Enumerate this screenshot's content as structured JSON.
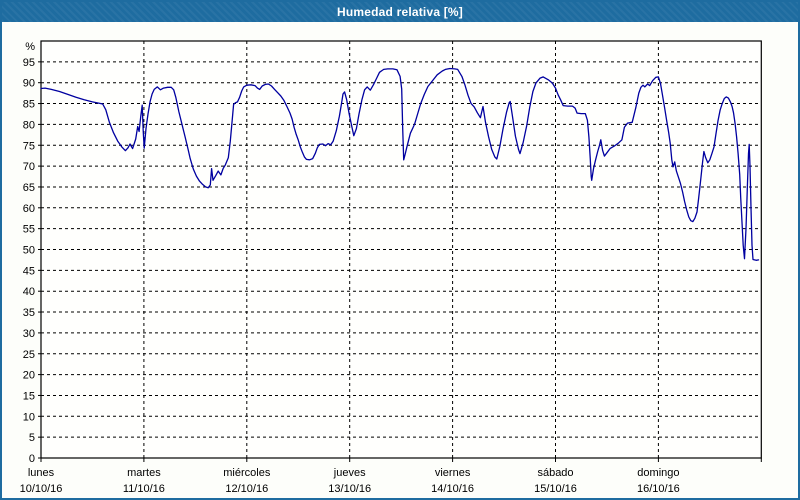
{
  "window": {
    "title": "Humedad relativa [%]"
  },
  "style": {
    "titlebar_bg": "#1e6ca0",
    "window_border": "#1e6ca0",
    "window_bg": "#fdfefa",
    "plot_bg": "#fffffd",
    "line_color": "#0000a0",
    "grid_color": "#000000",
    "frame_color": "#000000",
    "text_color": "#000000",
    "title_text_color": "#ffffff"
  },
  "chart_data": {
    "type": "line",
    "title": "Humedad relativa [%]",
    "ylabel": "%",
    "y_unit_label": "%",
    "ylim": [
      0,
      100
    ],
    "y_ticks": [
      0,
      5,
      10,
      15,
      20,
      25,
      30,
      35,
      40,
      45,
      50,
      55,
      60,
      65,
      70,
      75,
      80,
      85,
      90,
      95
    ],
    "grid": true,
    "x_unit": "days",
    "days": [
      {
        "name": "lunes",
        "date": "10/10/16"
      },
      {
        "name": "martes",
        "date": "11/10/16"
      },
      {
        "name": "miércoles",
        "date": "12/10/16"
      },
      {
        "name": "jueves",
        "date": "13/10/16"
      },
      {
        "name": "viernes",
        "date": "14/10/16"
      },
      {
        "name": "sábado",
        "date": "15/10/16"
      },
      {
        "name": "domingo",
        "date": "16/10/16"
      }
    ],
    "series": [
      {
        "name": "Humedad relativa",
        "color": "#0000a0",
        "points": [
          [
            0.0,
            88.6
          ],
          [
            0.04,
            88.7
          ],
          [
            0.1,
            88.4
          ],
          [
            0.18,
            87.9
          ],
          [
            0.26,
            87.2
          ],
          [
            0.34,
            86.5
          ],
          [
            0.42,
            85.9
          ],
          [
            0.5,
            85.4
          ],
          [
            0.56,
            85.1
          ],
          [
            0.6,
            84.9
          ],
          [
            0.63,
            83.5
          ],
          [
            0.665,
            80.5
          ],
          [
            0.705,
            78.0
          ],
          [
            0.745,
            76.0
          ],
          [
            0.785,
            74.6
          ],
          [
            0.82,
            73.7
          ],
          [
            0.845,
            74.4
          ],
          [
            0.865,
            75.3
          ],
          [
            0.89,
            74.2
          ],
          [
            0.92,
            76.5
          ],
          [
            0.94,
            79.5
          ],
          [
            0.953,
            78.3
          ],
          [
            0.97,
            82.0
          ],
          [
            0.983,
            84.6
          ],
          [
            0.993,
            78.5
          ],
          [
            1.003,
            74.3
          ],
          [
            1.02,
            79.0
          ],
          [
            1.04,
            82.5
          ],
          [
            1.06,
            85.5
          ],
          [
            1.08,
            87.3
          ],
          [
            1.1,
            88.4
          ],
          [
            1.13,
            89.0
          ],
          [
            1.16,
            88.3
          ],
          [
            1.19,
            88.7
          ],
          [
            1.23,
            88.9
          ],
          [
            1.265,
            88.9
          ],
          [
            1.29,
            88.3
          ],
          [
            1.31,
            86.5
          ],
          [
            1.34,
            83.0
          ],
          [
            1.37,
            80.0
          ],
          [
            1.4,
            77.0
          ],
          [
            1.43,
            74.0
          ],
          [
            1.45,
            71.8
          ],
          [
            1.48,
            69.3
          ],
          [
            1.51,
            67.6
          ],
          [
            1.54,
            66.4
          ],
          [
            1.57,
            65.6
          ],
          [
            1.6,
            65.0
          ],
          [
            1.625,
            64.8
          ],
          [
            1.645,
            65.5
          ],
          [
            1.658,
            69.4
          ],
          [
            1.672,
            66.6
          ],
          [
            1.7,
            67.8
          ],
          [
            1.722,
            68.8
          ],
          [
            1.748,
            67.9
          ],
          [
            1.77,
            69.4
          ],
          [
            1.792,
            70.3
          ],
          [
            1.82,
            72.0
          ],
          [
            1.84,
            76.0
          ],
          [
            1.858,
            81.0
          ],
          [
            1.872,
            84.8
          ],
          [
            1.89,
            85.2
          ],
          [
            1.91,
            85.4
          ],
          [
            1.93,
            86.5
          ],
          [
            1.95,
            88.0
          ],
          [
            1.97,
            89.0
          ],
          [
            2.0,
            89.4
          ],
          [
            2.04,
            89.5
          ],
          [
            2.08,
            89.3
          ],
          [
            2.103,
            88.7
          ],
          [
            2.125,
            88.4
          ],
          [
            2.15,
            89.2
          ],
          [
            2.18,
            89.6
          ],
          [
            2.21,
            89.7
          ],
          [
            2.24,
            89.2
          ],
          [
            2.27,
            88.4
          ],
          [
            2.3,
            87.6
          ],
          [
            2.33,
            86.8
          ],
          [
            2.36,
            85.8
          ],
          [
            2.39,
            84.3
          ],
          [
            2.42,
            82.7
          ],
          [
            2.44,
            81.3
          ],
          [
            2.46,
            79.3
          ],
          [
            2.48,
            77.6
          ],
          [
            2.5,
            76.2
          ],
          [
            2.52,
            74.6
          ],
          [
            2.54,
            73.3
          ],
          [
            2.56,
            72.2
          ],
          [
            2.58,
            71.6
          ],
          [
            2.61,
            71.5
          ],
          [
            2.64,
            71.8
          ],
          [
            2.665,
            73.0
          ],
          [
            2.685,
            74.4
          ],
          [
            2.705,
            75.2
          ],
          [
            2.74,
            75.3
          ],
          [
            2.765,
            74.9
          ],
          [
            2.79,
            75.4
          ],
          [
            2.815,
            75.1
          ],
          [
            2.84,
            76.0
          ],
          [
            2.87,
            78.5
          ],
          [
            2.9,
            82.0
          ],
          [
            2.92,
            85.0
          ],
          [
            2.935,
            87.3
          ],
          [
            2.95,
            87.8
          ],
          [
            2.97,
            86.0
          ],
          [
            2.995,
            82.5
          ],
          [
            3.02,
            79.5
          ],
          [
            3.04,
            77.3
          ],
          [
            3.065,
            79.0
          ],
          [
            3.09,
            82.5
          ],
          [
            3.12,
            86.0
          ],
          [
            3.145,
            88.3
          ],
          [
            3.17,
            89.0
          ],
          [
            3.2,
            88.2
          ],
          [
            3.23,
            89.5
          ],
          [
            3.26,
            91.0
          ],
          [
            3.29,
            92.5
          ],
          [
            3.33,
            93.2
          ],
          [
            3.37,
            93.3
          ],
          [
            3.42,
            93.3
          ],
          [
            3.46,
            93.1
          ],
          [
            3.49,
            91.5
          ],
          [
            3.505,
            88.5
          ],
          [
            3.515,
            79.0
          ],
          [
            3.525,
            71.5
          ],
          [
            3.54,
            73.0
          ],
          [
            3.555,
            74.5
          ],
          [
            3.59,
            77.9
          ],
          [
            3.63,
            80.0
          ],
          [
            3.66,
            82.5
          ],
          [
            3.69,
            85.0
          ],
          [
            3.725,
            87.2
          ],
          [
            3.76,
            89.1
          ],
          [
            3.8,
            90.3
          ],
          [
            3.85,
            91.9
          ],
          [
            3.9,
            92.8
          ],
          [
            3.93,
            93.2
          ],
          [
            3.975,
            93.4
          ],
          [
            4.02,
            93.3
          ],
          [
            4.05,
            93.2
          ],
          [
            4.09,
            91.5
          ],
          [
            4.12,
            89.5
          ],
          [
            4.15,
            87.0
          ],
          [
            4.18,
            85.0
          ],
          [
            4.21,
            84.2
          ],
          [
            4.24,
            82.8
          ],
          [
            4.27,
            81.6
          ],
          [
            4.295,
            84.3
          ],
          [
            4.32,
            80.5
          ],
          [
            4.35,
            77.0
          ],
          [
            4.38,
            74.0
          ],
          [
            4.41,
            72.2
          ],
          [
            4.43,
            71.7
          ],
          [
            4.46,
            74.8
          ],
          [
            4.49,
            78.9
          ],
          [
            4.525,
            83.0
          ],
          [
            4.55,
            85.2
          ],
          [
            4.56,
            85.5
          ],
          [
            4.58,
            82.2
          ],
          [
            4.61,
            77.2
          ],
          [
            4.64,
            74.0
          ],
          [
            4.655,
            73.0
          ],
          [
            4.685,
            75.6
          ],
          [
            4.72,
            79.7
          ],
          [
            4.75,
            84.2
          ],
          [
            4.78,
            87.9
          ],
          [
            4.81,
            89.9
          ],
          [
            4.85,
            91.1
          ],
          [
            4.88,
            91.4
          ],
          [
            4.93,
            90.7
          ],
          [
            4.97,
            89.9
          ],
          [
            5.0,
            88.7
          ],
          [
            5.025,
            87.1
          ],
          [
            5.05,
            85.9
          ],
          [
            5.075,
            84.5
          ],
          [
            5.12,
            84.4
          ],
          [
            5.165,
            84.4
          ],
          [
            5.19,
            83.9
          ],
          [
            5.21,
            82.7
          ],
          [
            5.25,
            82.6
          ],
          [
            5.29,
            82.6
          ],
          [
            5.31,
            81.0
          ],
          [
            5.325,
            77.0
          ],
          [
            5.337,
            72.0
          ],
          [
            5.347,
            67.5
          ],
          [
            5.352,
            66.6
          ],
          [
            5.37,
            69.5
          ],
          [
            5.39,
            71.5
          ],
          [
            5.41,
            73.5
          ],
          [
            5.428,
            75.0
          ],
          [
            5.44,
            76.3
          ],
          [
            5.458,
            73.8
          ],
          [
            5.475,
            72.4
          ],
          [
            5.5,
            73.2
          ],
          [
            5.53,
            74.2
          ],
          [
            5.57,
            74.8
          ],
          [
            5.61,
            75.5
          ],
          [
            5.645,
            76.3
          ],
          [
            5.67,
            79.3
          ],
          [
            5.7,
            80.3
          ],
          [
            5.745,
            80.5
          ],
          [
            5.78,
            84.0
          ],
          [
            5.81,
            87.5
          ],
          [
            5.83,
            88.9
          ],
          [
            5.85,
            89.4
          ],
          [
            5.868,
            89.0
          ],
          [
            5.895,
            89.7
          ],
          [
            5.915,
            89.3
          ],
          [
            5.945,
            90.5
          ],
          [
            5.975,
            91.3
          ],
          [
            6.0,
            91.4
          ],
          [
            6.02,
            89.8
          ],
          [
            6.04,
            87.0
          ],
          [
            6.06,
            84.0
          ],
          [
            6.08,
            81.0
          ],
          [
            6.1,
            78.0
          ],
          [
            6.115,
            75.5
          ],
          [
            6.13,
            71.5
          ],
          [
            6.142,
            69.8
          ],
          [
            6.158,
            71.0
          ],
          [
            6.175,
            68.8
          ],
          [
            6.195,
            67.3
          ],
          [
            6.215,
            65.8
          ],
          [
            6.235,
            63.8
          ],
          [
            6.255,
            61.5
          ],
          [
            6.275,
            59.5
          ],
          [
            6.295,
            57.8
          ],
          [
            6.315,
            56.9
          ],
          [
            6.335,
            56.7
          ],
          [
            6.355,
            57.5
          ],
          [
            6.375,
            59.0
          ],
          [
            6.39,
            62.0
          ],
          [
            6.41,
            66.5
          ],
          [
            6.43,
            71.0
          ],
          [
            6.442,
            73.5
          ],
          [
            6.46,
            72.0
          ],
          [
            6.48,
            70.8
          ],
          [
            6.5,
            71.5
          ],
          [
            6.52,
            73.0
          ],
          [
            6.54,
            74.6
          ],
          [
            6.56,
            77.8
          ],
          [
            6.58,
            81.0
          ],
          [
            6.6,
            83.4
          ],
          [
            6.62,
            85.0
          ],
          [
            6.64,
            86.2
          ],
          [
            6.66,
            86.6
          ],
          [
            6.68,
            86.3
          ],
          [
            6.7,
            85.4
          ],
          [
            6.716,
            84.3
          ],
          [
            6.73,
            82.8
          ],
          [
            6.745,
            80.2
          ],
          [
            6.76,
            77.0
          ],
          [
            6.775,
            73.0
          ],
          [
            6.79,
            68.0
          ],
          [
            6.8,
            62.5
          ],
          [
            6.812,
            56.5
          ],
          [
            6.824,
            51.0
          ],
          [
            6.837,
            47.8
          ],
          [
            6.851,
            55.0
          ],
          [
            6.866,
            66.0
          ],
          [
            6.876,
            73.0
          ],
          [
            6.882,
            75.2
          ],
          [
            6.89,
            70.0
          ],
          [
            6.9,
            60.0
          ],
          [
            6.91,
            51.0
          ],
          [
            6.919,
            47.6
          ],
          [
            6.95,
            47.4
          ],
          [
            6.973,
            47.5
          ]
        ]
      }
    ]
  }
}
